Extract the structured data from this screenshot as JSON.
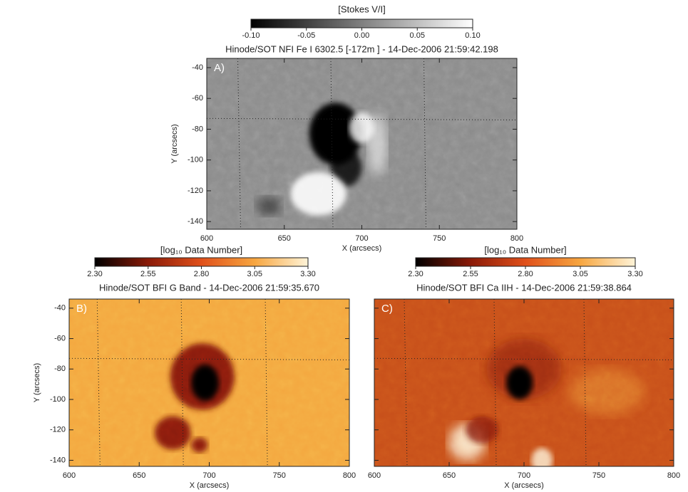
{
  "chart_data": [
    {
      "type": "image",
      "label": "A)",
      "title": "Hinode/SOT NFI Fe I 6302.5 [-172m  ] - 14-Dec-2006 21:59:42.198",
      "colorbar_title": "[Stokes V/I]",
      "colorbar_lim": [
        -0.1,
        0.1
      ],
      "colorbar_ticks": [
        {
          "value": -0.1,
          "label": "-0.10"
        },
        -0.05,
        {
          "value": 0,
          "label": "0.00"
        },
        0.05,
        {
          "value": 0.1,
          "label": "0.10"
        }
      ],
      "colormap": [
        "#000000",
        "#ffffff"
      ],
      "xlabel": "X (arcsecs)",
      "ylabel": "Y (arcsecs)",
      "xlim": [
        600,
        800
      ],
      "xticks": [
        600,
        650,
        700,
        750,
        800
      ],
      "ylim": [
        -145,
        -34
      ],
      "yticks": [
        -40,
        -60,
        -80,
        -100,
        -120,
        -140
      ]
    },
    {
      "type": "image",
      "label": "B)",
      "title": "Hinode/SOT BFI G Band - 14-Dec-2006 21:59:35.670",
      "colorbar_title": "[log₁₀ Data Number]",
      "colorbar_lim": [
        2.3,
        3.3
      ],
      "colorbar_ticks": [
        {
          "value": 2.3,
          "label": "2.30"
        },
        2.55,
        {
          "value": 2.8,
          "label": "2.80"
        },
        3.05,
        {
          "value": 3.3,
          "label": "3.30"
        }
      ],
      "colormap": [
        "#000000",
        "#8a1a08",
        "#e0501a",
        "#f7a640",
        "#fff4d8"
      ],
      "xlabel": "X (arcsecs)",
      "ylabel": "Y (arcsecs)",
      "xlim": [
        600,
        800
      ],
      "xticks": [
        600,
        650,
        700,
        750,
        800
      ],
      "ylim": [
        -144,
        -34
      ],
      "yticks": [
        -40,
        -60,
        -80,
        -100,
        -120,
        -140
      ]
    },
    {
      "type": "image",
      "label": "C)",
      "title": "Hinode/SOT BFI Ca IIH - 14-Dec-2006 21:59:38.864",
      "colorbar_title": "[log₁₀ Data Number]",
      "colorbar_lim": [
        2.3,
        3.3
      ],
      "colorbar_ticks": [
        {
          "value": 2.3,
          "label": "2.30"
        },
        2.55,
        {
          "value": 2.8,
          "label": "2.80"
        },
        3.05,
        {
          "value": 3.3,
          "label": "3.30"
        }
      ],
      "colormap": [
        "#000000",
        "#8a1a08",
        "#e0501a",
        "#f7a640",
        "#fff4d8"
      ],
      "xlabel": "X (arcsecs)",
      "xlim": [
        600,
        800
      ],
      "xticks": [
        600,
        650,
        700,
        750,
        800
      ],
      "ylim": [
        -144,
        -34
      ],
      "yticks": [
        -40,
        -60,
        -80,
        -100,
        -120,
        -140
      ]
    }
  ]
}
